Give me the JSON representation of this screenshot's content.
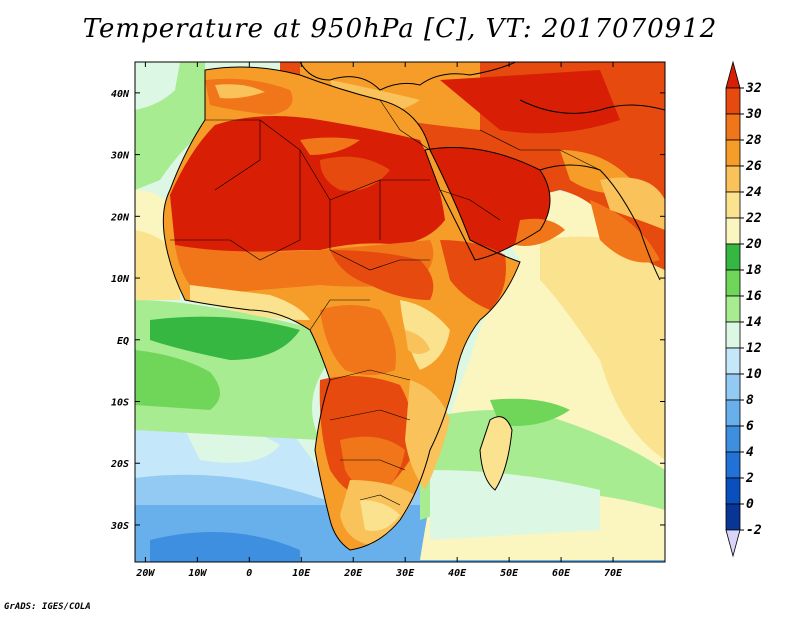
{
  "title": "Temperature at 950hPa [C], VT: 2017070912",
  "credit": "GrADS: IGES/COLA",
  "map": {
    "lon_range": [
      -22,
      80
    ],
    "lat_range": [
      -36,
      45
    ],
    "lon_ticks": [
      {
        "value": -20,
        "label": "20W"
      },
      {
        "value": -10,
        "label": "10W"
      },
      {
        "value": 0,
        "label": "0"
      },
      {
        "value": 10,
        "label": "10E"
      },
      {
        "value": 20,
        "label": "20E"
      },
      {
        "value": 30,
        "label": "30E"
      },
      {
        "value": 40,
        "label": "40E"
      },
      {
        "value": 50,
        "label": "50E"
      },
      {
        "value": 60,
        "label": "60E"
      },
      {
        "value": 70,
        "label": "70E"
      }
    ],
    "lat_ticks": [
      {
        "value": 40,
        "label": "40N"
      },
      {
        "value": 30,
        "label": "30N"
      },
      {
        "value": 20,
        "label": "20N"
      },
      {
        "value": 10,
        "label": "10N"
      },
      {
        "value": 0,
        "label": "EQ"
      },
      {
        "value": -10,
        "label": "10S"
      },
      {
        "value": -20,
        "label": "20S"
      },
      {
        "value": -30,
        "label": "30S"
      }
    ]
  },
  "colorbar": {
    "labels": [
      "32",
      "30",
      "28",
      "26",
      "24",
      "22",
      "20",
      "18",
      "16",
      "14",
      "12",
      "10",
      "8",
      "6",
      "4",
      "2",
      "0",
      "-2"
    ],
    "colors_top_to_bottom": [
      "#d81e05",
      "#e64a0f",
      "#f17519",
      "#f69d29",
      "#f9c25a",
      "#fbe28f",
      "#fbf5bf",
      "#36b742",
      "#6fd65a",
      "#a8ec92",
      "#dcf7e4",
      "#c4e7f9",
      "#92caf3",
      "#68b0ec",
      "#3f8fe0",
      "#2171d6",
      "#0a4fbe",
      "#083596",
      "#d9d4f9"
    ]
  },
  "field_colors": {
    "very_hot": "#d81e05",
    "hot": "#e64a0f",
    "warm_orange": "#f17519",
    "orange": "#f69d29",
    "light_orange": "#f9c25a",
    "yellow": "#fbe28f",
    "pale_yellow": "#fbf5bf",
    "green": "#36b742",
    "light_green": "#6fd65a",
    "pale_green": "#a8ec92",
    "cyan_white": "#dcf7e4",
    "sky": "#c4e7f9",
    "light_blue": "#92caf3",
    "blue": "#68b0ec",
    "deep_blue": "#3f8fe0"
  }
}
